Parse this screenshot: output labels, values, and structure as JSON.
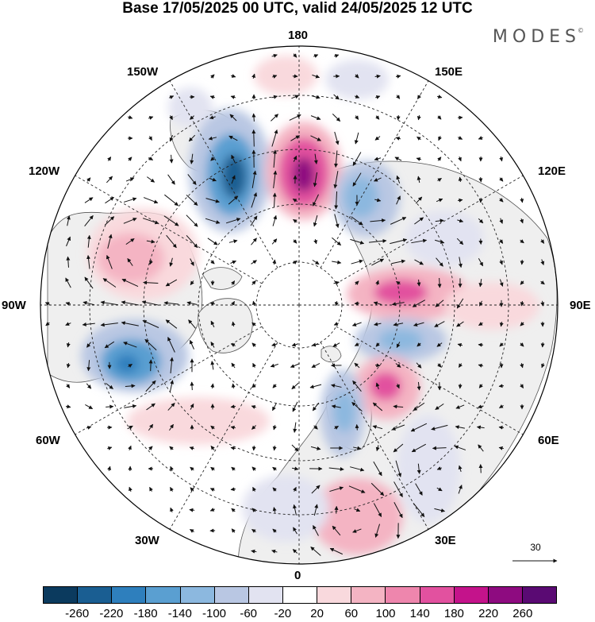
{
  "title": "Base 17/05/2025 00 UTC, valid 24/05/2025 12 UTC",
  "brand": "MODES",
  "brand_mark": "©",
  "longitude_labels": {
    "lon_180": "180",
    "lon_150E": "150E",
    "lon_120E": "120E",
    "lon_90E": "90E",
    "lon_60E": "60E",
    "lon_30E": "30E",
    "lon_0": "0",
    "lon_30W": "30W",
    "lon_60W": "60W",
    "lon_90W": "90W",
    "lon_120W": "120W",
    "lon_150W": "150W"
  },
  "reference_vector": {
    "label": "30"
  },
  "colorbar": {
    "colors": [
      "#0b3a5e",
      "#1a5e92",
      "#2e7fbd",
      "#5a9fd1",
      "#8cb8df",
      "#b9c7e3",
      "#e2e3f1",
      "#ffffff",
      "#f9d9dd",
      "#f4b4c3",
      "#ee86ad",
      "#e2519f",
      "#c4138b",
      "#8e0b80",
      "#5a0a73"
    ],
    "tick_labels": [
      "-260",
      "-220",
      "-180",
      "-140",
      "-100",
      "-60",
      "-20",
      "20",
      "60",
      "100",
      "140",
      "180",
      "220",
      "260"
    ]
  },
  "map_colors": {
    "land": "#efefef",
    "coast": "#555555",
    "grid": "#222222"
  }
}
